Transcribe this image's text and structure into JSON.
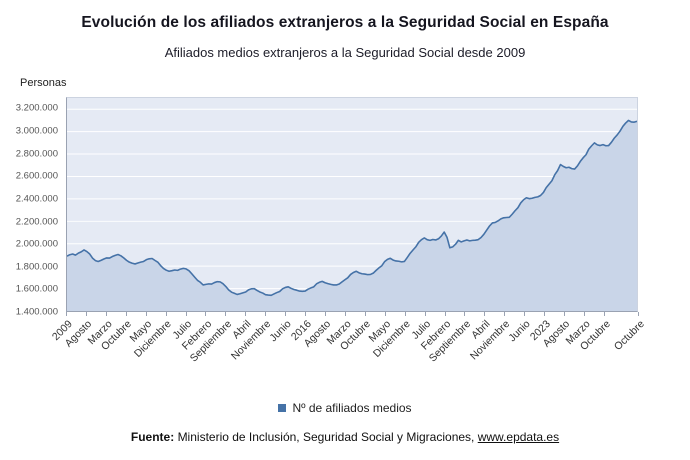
{
  "chart_data": {
    "type": "area",
    "title": "Evolución de los afiliados extranjeros a la Seguridad Social en España",
    "subtitle": "Afiliados medios extranjeros a la Seguridad Social desde 2009",
    "ylabel": "Personas",
    "x_frequency": "monthly",
    "x_start": "Enero 2009",
    "x_end": "Octubre 2025",
    "ylim": [
      1400000,
      3300000
    ],
    "grid": "horizontal",
    "legend_position": "bottom",
    "y_ticks": [
      1400000,
      1600000,
      1800000,
      2000000,
      2200000,
      2400000,
      2600000,
      2800000,
      3000000,
      3200000
    ],
    "y_tick_labels": [
      "1.400.000",
      "1.600.000",
      "1.800.000",
      "2.000.000",
      "2.200.000",
      "2.400.000",
      "2.600.000",
      "2.800.000",
      "3.000.000",
      "3.200.000"
    ],
    "x_tick_positions": [
      0,
      7,
      14,
      21,
      28,
      35,
      42,
      49,
      56,
      63,
      70,
      77,
      84,
      91,
      98,
      105,
      112,
      119,
      126,
      133,
      140,
      147,
      154,
      161,
      168,
      175,
      182,
      189,
      201
    ],
    "x_tick_labels": [
      "2009",
      "Agosto",
      "Marzo",
      "Octubre",
      "Mayo",
      "Diciembre",
      "Julio",
      "Febrero",
      "Septiembre",
      "Abril",
      "Noviembre",
      "Junio",
      "2016",
      "Agosto",
      "Marzo",
      "Octubre",
      "Mayo",
      "Diciembre",
      "Julio",
      "Febrero",
      "Septiembre",
      "Abril",
      "Noviembre",
      "Junio",
      "2023",
      "Agosto",
      "Marzo",
      "Octubre",
      "Octubre"
    ],
    "series": [
      {
        "name": "Nº de afiliados medios",
        "values": [
          1890000,
          1902000,
          1908000,
          1898000,
          1916000,
          1928000,
          1944000,
          1930000,
          1908000,
          1872000,
          1850000,
          1842000,
          1852000,
          1864000,
          1874000,
          1872000,
          1886000,
          1896000,
          1904000,
          1892000,
          1874000,
          1852000,
          1836000,
          1826000,
          1820000,
          1828000,
          1836000,
          1842000,
          1858000,
          1866000,
          1868000,
          1852000,
          1836000,
          1806000,
          1780000,
          1764000,
          1754000,
          1760000,
          1766000,
          1762000,
          1774000,
          1780000,
          1776000,
          1760000,
          1732000,
          1702000,
          1674000,
          1656000,
          1632000,
          1638000,
          1642000,
          1640000,
          1654000,
          1662000,
          1660000,
          1644000,
          1618000,
          1588000,
          1568000,
          1558000,
          1548000,
          1554000,
          1562000,
          1570000,
          1588000,
          1598000,
          1600000,
          1584000,
          1570000,
          1560000,
          1546000,
          1542000,
          1540000,
          1552000,
          1564000,
          1574000,
          1598000,
          1610000,
          1616000,
          1602000,
          1592000,
          1586000,
          1578000,
          1576000,
          1578000,
          1594000,
          1606000,
          1616000,
          1642000,
          1656000,
          1664000,
          1652000,
          1644000,
          1638000,
          1632000,
          1632000,
          1640000,
          1660000,
          1678000,
          1696000,
          1726000,
          1744000,
          1754000,
          1740000,
          1732000,
          1730000,
          1724000,
          1726000,
          1738000,
          1762000,
          1784000,
          1804000,
          1840000,
          1860000,
          1870000,
          1854000,
          1846000,
          1844000,
          1838000,
          1842000,
          1878000,
          1914000,
          1944000,
          1972000,
          2012000,
          2036000,
          2052000,
          2036000,
          2030000,
          2038000,
          2034000,
          2044000,
          2068000,
          2104000,
          2058000,
          1964000,
          1972000,
          1996000,
          2030000,
          2016000,
          2026000,
          2034000,
          2026000,
          2030000,
          2032000,
          2036000,
          2056000,
          2084000,
          2122000,
          2158000,
          2186000,
          2190000,
          2204000,
          2222000,
          2232000,
          2234000,
          2236000,
          2264000,
          2294000,
          2322000,
          2364000,
          2392000,
          2410000,
          2402000,
          2406000,
          2414000,
          2418000,
          2430000,
          2458000,
          2500000,
          2532000,
          2562000,
          2616000,
          2652000,
          2706000,
          2690000,
          2678000,
          2682000,
          2670000,
          2666000,
          2694000,
          2734000,
          2766000,
          2794000,
          2844000,
          2874000,
          2900000,
          2882000,
          2876000,
          2884000,
          2874000,
          2876000,
          2906000,
          2942000,
          2970000,
          3004000,
          3046000,
          3076000,
          3100000,
          3086000,
          3084000,
          3092000
        ]
      }
    ]
  },
  "footer": {
    "source_label": "Fuente:",
    "source_text": "Ministerio de Inclusión, Seguridad Social y Migraciones,",
    "link": "www.epdata.es"
  },
  "colors": {
    "line": "#4572a7",
    "area_fill": "#c9d5e8",
    "plot_bg": "#e5eaf4",
    "gridline": "#ffffff",
    "axis": "#9aa2b2",
    "legend_marker": "#4572a7"
  }
}
